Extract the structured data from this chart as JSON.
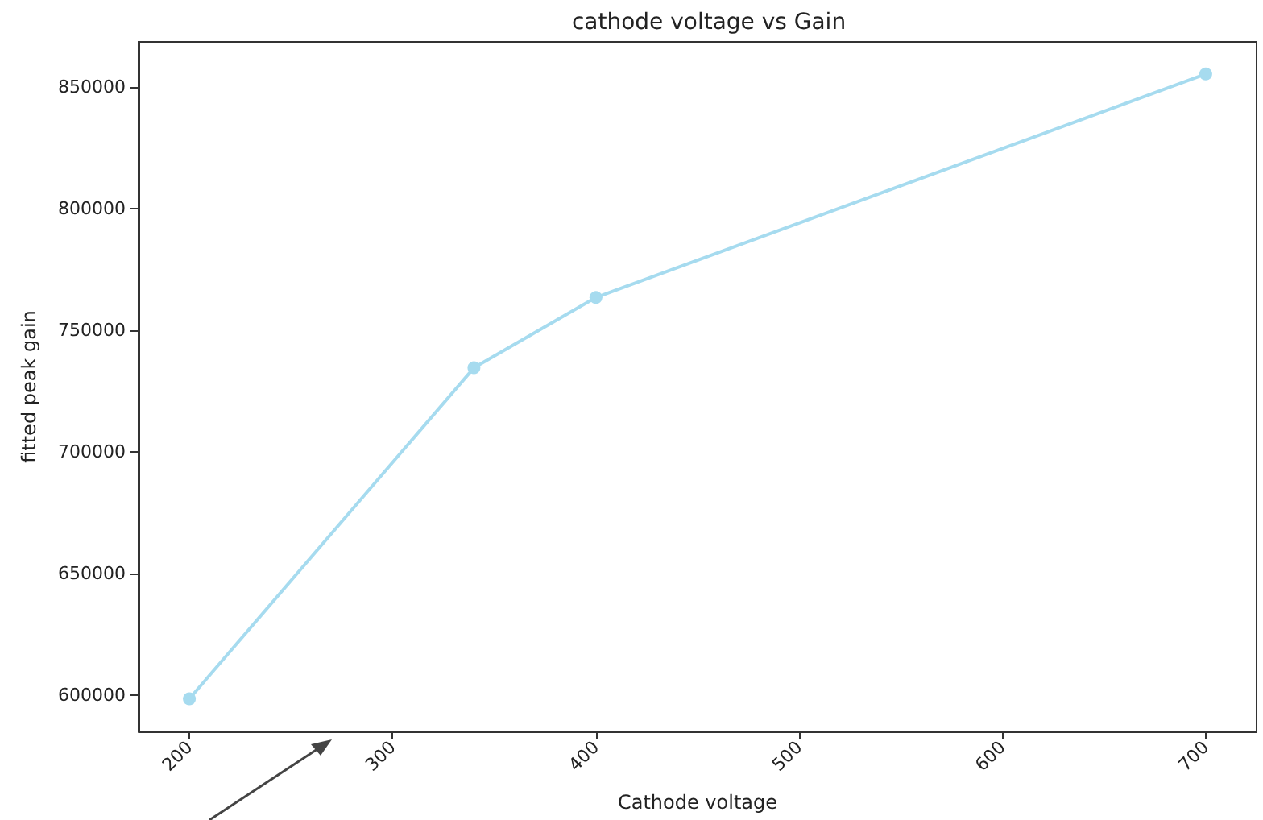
{
  "chart_data": {
    "type": "line",
    "title": "cathode voltage vs Gain",
    "xlabel": "Cathode voltage",
    "ylabel": "fitted peak gain",
    "x": [
      200,
      340,
      400,
      700
    ],
    "series": [
      {
        "color": "#a6dbef",
        "values": [
          598400,
          734500,
          763400,
          855300
        ]
      }
    ],
    "xlim": [
      175,
      725
    ],
    "xticks": [
      200,
      300,
      400,
      500,
      600,
      700
    ],
    "ylim": [
      585000,
      868500
    ],
    "yticks": [
      600000,
      650000,
      700000,
      750000,
      800000,
      850000
    ],
    "marker": "circle",
    "line_style": "solid",
    "grid": false
  }
}
